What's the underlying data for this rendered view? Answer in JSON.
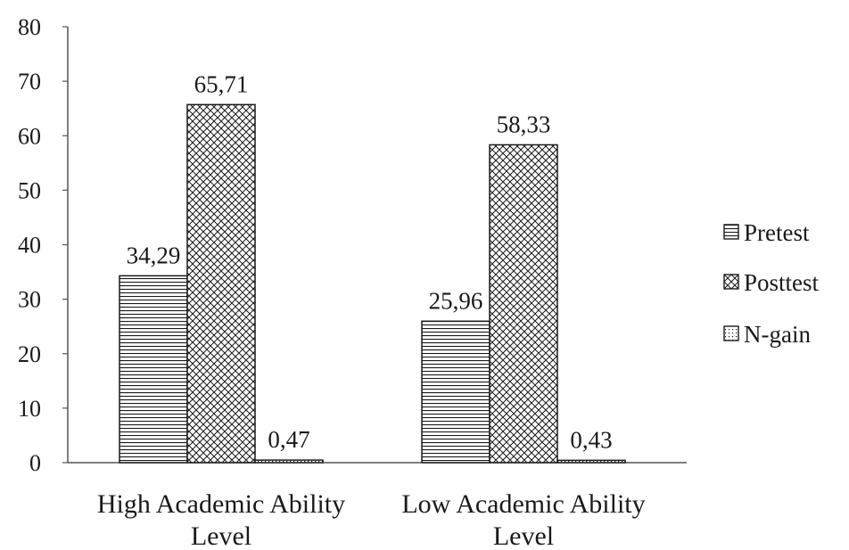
{
  "chart_data": {
    "type": "bar",
    "categories": [
      "High Academic Ability Level",
      "Low Academic Ability Level"
    ],
    "category_lines": [
      [
        "High Academic Ability",
        "Level"
      ],
      [
        "Low Academic Ability",
        "Level"
      ]
    ],
    "series": [
      {
        "name": "Pretest",
        "values": [
          34.29,
          25.96
        ],
        "labels": [
          "34,29",
          "25,96"
        ],
        "pattern": "horizontal-lines"
      },
      {
        "name": "Posttest",
        "values": [
          65.71,
          58.33
        ],
        "labels": [
          "65,71",
          "58,33"
        ],
        "pattern": "crosshatch"
      },
      {
        "name": "N-gain",
        "values": [
          0.47,
          0.43
        ],
        "labels": [
          "0,47",
          "0,43"
        ],
        "pattern": "dots"
      }
    ],
    "title": "",
    "xlabel": "",
    "ylabel": "",
    "ylim": [
      0,
      80
    ],
    "yticks": [
      0,
      10,
      20,
      30,
      40,
      50,
      60,
      70,
      80
    ],
    "grid": false,
    "legend_position": "right",
    "colors": {
      "stroke": "#1a1a1a",
      "fill": "#ffffff"
    }
  }
}
